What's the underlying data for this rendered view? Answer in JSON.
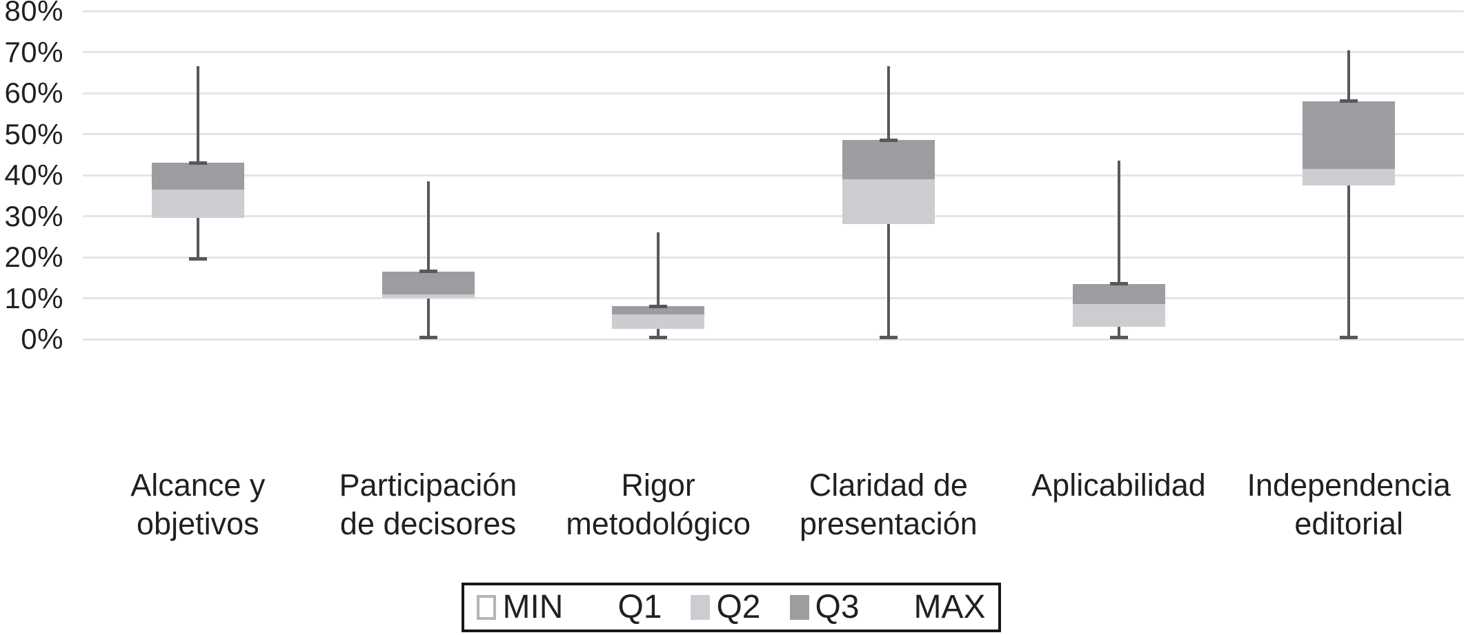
{
  "chart_data": {
    "type": "boxplot",
    "title": "",
    "xlabel": "",
    "ylabel": "",
    "grid": true,
    "legend_position": "bottom-center",
    "categories": [
      "Alcance y objetivos",
      "Participación de decisores",
      "Rigor metodológico",
      "Claridad de presentación",
      "Aplicabilidad",
      "Independencia editorial"
    ],
    "category_label_lines": [
      [
        "Alcance y",
        "objetivos"
      ],
      [
        "Participación",
        "de decisores"
      ],
      [
        "Rigor",
        "metodológico"
      ],
      [
        "Claridad de",
        "presentación"
      ],
      [
        "Aplicabilidad"
      ],
      [
        "Independencia",
        "editorial"
      ]
    ],
    "series": [
      {
        "category": "Alcance y objetivos",
        "min": 19.5,
        "q1": 29.5,
        "q2": 36.5,
        "q3": 43.0,
        "max": 66.5
      },
      {
        "category": "Participación de decisores",
        "min": 0.5,
        "q1": 10.0,
        "q2": 11.0,
        "q3": 16.5,
        "max": 38.5
      },
      {
        "category": "Rigor metodológico",
        "min": 0.5,
        "q1": 2.5,
        "q2": 6.0,
        "q3": 8.0,
        "max": 26.0
      },
      {
        "category": "Claridad de presentación",
        "min": 0.5,
        "q1": 28.0,
        "q2": 39.0,
        "q3": 48.5,
        "max": 66.5
      },
      {
        "category": "Aplicabilidad",
        "min": 0.5,
        "q1": 3.0,
        "q2": 8.5,
        "q3": 13.5,
        "max": 43.5
      },
      {
        "category": "Independencia editorial",
        "min": 0.5,
        "q1": 37.5,
        "q2": 41.5,
        "q3": 58.0,
        "max": 70.5
      }
    ],
    "y_axis": {
      "min": 0,
      "max": 80,
      "tick_step": 10,
      "tick_labels": [
        "0%",
        "10%",
        "20%",
        "30%",
        "40%",
        "50%",
        "60%",
        "70%",
        "80%"
      ],
      "unit": "%"
    },
    "legend": {
      "items": [
        {
          "label": "MIN",
          "swatch": "outline"
        },
        {
          "label": "Q1",
          "swatch": "none"
        },
        {
          "label": "Q2",
          "swatch": "light"
        },
        {
          "label": "Q3",
          "swatch": "dark"
        },
        {
          "label": "MAX",
          "swatch": "none"
        }
      ]
    },
    "colors": {
      "q2_fill": "#cbcdd0",
      "q3_fill": "#9b9da1",
      "whisker": "#56585c",
      "gridline": "#e4e5e7",
      "text": "#1f2023",
      "legend_border": "#17181b",
      "min_swatch_border": "#b3b5b8",
      "background": "#ffffff"
    }
  }
}
